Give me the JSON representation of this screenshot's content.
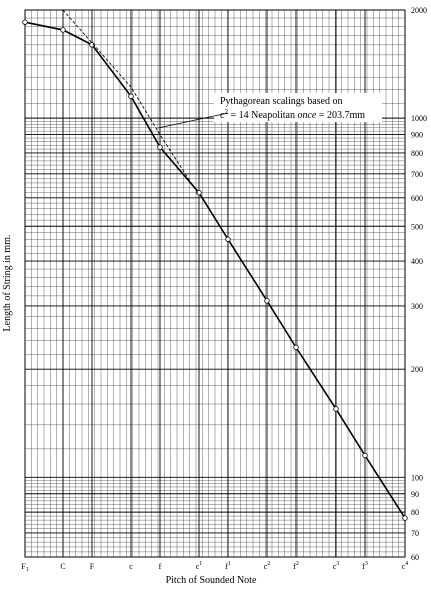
{
  "chart_data": {
    "type": "line",
    "title": "",
    "xlabel": "Pitch of Sounded Note",
    "ylabel": "Length of String in mm.",
    "y_scale": "log",
    "ylim": [
      60,
      2000
    ],
    "y_ticks": [
      60,
      70,
      80,
      90,
      100,
      200,
      300,
      400,
      500,
      600,
      700,
      800,
      900,
      1000,
      2000
    ],
    "x_ticks": [
      {
        "label": "F",
        "sub": "1",
        "sup": ""
      },
      {
        "label": "C",
        "sub": "",
        "sup": ""
      },
      {
        "label": "F",
        "sub": "",
        "sup": ""
      },
      {
        "label": "c",
        "sub": "",
        "sup": ""
      },
      {
        "label": "f",
        "sub": "",
        "sup": ""
      },
      {
        "label": "c",
        "sub": "",
        "sup": "1"
      },
      {
        "label": "f",
        "sub": "",
        "sup": "1"
      },
      {
        "label": "c",
        "sub": "",
        "sup": "2"
      },
      {
        "label": "f",
        "sub": "",
        "sup": "2"
      },
      {
        "label": "c",
        "sub": "",
        "sup": "3"
      },
      {
        "label": "f",
        "sub": "",
        "sup": "3"
      },
      {
        "label": "c",
        "sub": "",
        "sup": "4"
      }
    ],
    "series": [
      {
        "style": "solid",
        "x": [
          "F1",
          "C",
          "F",
          "c",
          "f",
          "c1",
          "f1",
          "c2",
          "f2",
          "c3",
          "f3",
          "c4"
        ],
        "y": [
          1850,
          1760,
          1600,
          1150,
          830,
          620,
          460,
          310,
          230,
          155,
          115,
          77
        ]
      },
      {
        "style": "dashed",
        "x": [
          "C",
          "F",
          "c",
          "f",
          "c1"
        ],
        "y": [
          2000,
          1620,
          1220,
          900,
          610
        ]
      }
    ],
    "annotation": {
      "line1": "Pythagorean scalings based on",
      "line2_prefix": "c",
      "line2_sup": "2",
      "line2_mid": " = 14 Neapolitan ",
      "line2_italic": "once",
      "line2_suffix": " = 203.7mm"
    }
  }
}
